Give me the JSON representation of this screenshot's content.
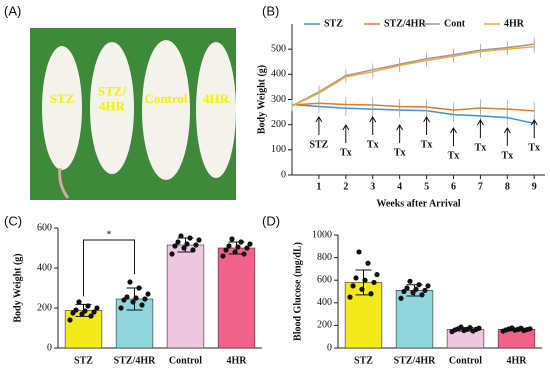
{
  "photo": {
    "panel": "(A)",
    "labels": [
      [
        "STZ"
      ],
      [
        "STZ/",
        "4HR"
      ],
      [
        "Control"
      ],
      [
        "4HR"
      ]
    ]
  },
  "chart_data": [
    {
      "type": "line",
      "panel": "(B)",
      "x_label": "Weeks after Arrival",
      "y_label": "Body Weight (g)",
      "x": [
        0,
        1,
        2,
        3,
        4,
        5,
        6,
        7,
        8,
        9
      ],
      "xlim": [
        0,
        9.4
      ],
      "xticks": [
        1,
        2,
        3,
        4,
        5,
        6,
        7,
        8,
        9
      ],
      "ylim": [
        0,
        600
      ],
      "yticks": [
        0,
        100,
        200,
        300,
        400,
        500
      ],
      "series": [
        {
          "name": "STZ",
          "color": "#3b94d9",
          "values": [
            280,
            272,
            265,
            262,
            258,
            256,
            240,
            235,
            228,
            205
          ],
          "errors": [
            20,
            25,
            30,
            30,
            30,
            30,
            30,
            30,
            30,
            30
          ]
        },
        {
          "name": "STZ/4HR",
          "color": "#e07a2e",
          "values": [
            278,
            285,
            280,
            278,
            272,
            270,
            258,
            266,
            262,
            255
          ],
          "errors": [
            20,
            25,
            30,
            30,
            30,
            30,
            30,
            35,
            35,
            35
          ]
        },
        {
          "name": "Cont",
          "color": "#9a9a9a",
          "values": [
            275,
            330,
            395,
            418,
            440,
            462,
            478,
            496,
            506,
            520
          ],
          "errors": [
            20,
            25,
            25,
            25,
            25,
            25,
            25,
            25,
            25,
            25
          ]
        },
        {
          "name": "4HR",
          "color": "#e8b040",
          "values": [
            274,
            325,
            390,
            410,
            435,
            455,
            472,
            490,
            500,
            510
          ],
          "errors": [
            20,
            25,
            25,
            25,
            25,
            25,
            25,
            25,
            25,
            25
          ]
        }
      ],
      "annotations": [
        {
          "x": 1,
          "label": "STZ"
        },
        {
          "x": 2,
          "label": "Tx"
        },
        {
          "x": 3,
          "label": "Tx"
        },
        {
          "x": 4,
          "label": "Tx"
        },
        {
          "x": 5,
          "label": "Tx"
        },
        {
          "x": 6,
          "label": "Tx"
        },
        {
          "x": 7,
          "label": "Tx"
        },
        {
          "x": 8,
          "label": "Tx"
        },
        {
          "x": 9,
          "label": "Tx"
        }
      ]
    },
    {
      "type": "bar",
      "panel": "(C)",
      "y_label": "Body Weight (g)",
      "significance": "*",
      "categories": [
        "STZ",
        "STZ/4HR",
        "Control",
        "4HR"
      ],
      "colors": [
        "#f2ea1a",
        "#8fd6dc",
        "#edc6df",
        "#f0628c"
      ],
      "values": [
        188,
        245,
        515,
        500
      ],
      "errors": [
        30,
        55,
        35,
        30
      ],
      "points": [
        [
          140,
          160,
          170,
          175,
          180,
          185,
          190,
          200,
          210,
          230
        ],
        [
          200,
          215,
          230,
          240,
          245,
          250,
          255,
          270,
          300,
          330
        ],
        [
          470,
          490,
          500,
          510,
          515,
          520,
          530,
          540,
          550,
          560
        ],
        [
          460,
          470,
          480,
          490,
          500,
          505,
          510,
          520,
          530,
          545
        ]
      ],
      "ylim": [
        0,
        600
      ],
      "yticks": [
        0,
        200,
        400,
        600
      ]
    },
    {
      "type": "bar",
      "panel": "(D)",
      "y_label": "Blood Glucose (mg/dL)",
      "categories": [
        "STZ",
        "STZ/4HR",
        "Control",
        "4HR"
      ],
      "colors": [
        "#f2ea1a",
        "#8fd6dc",
        "#edc6df",
        "#f0628c"
      ],
      "values": [
        580,
        510,
        165,
        165
      ],
      "errors": [
        110,
        50,
        15,
        12
      ],
      "points": [
        [
          450,
          480,
          520,
          550,
          580,
          600,
          620,
          650,
          750,
          850
        ],
        [
          440,
          470,
          490,
          500,
          510,
          520,
          530,
          550,
          560,
          590
        ],
        [
          145,
          150,
          155,
          160,
          165,
          165,
          170,
          175,
          180,
          185
        ],
        [
          150,
          155,
          158,
          160,
          163,
          165,
          168,
          170,
          175,
          178
        ]
      ],
      "ylim": [
        0,
        1000
      ],
      "yticks": [
        0,
        200,
        400,
        600,
        800,
        1000
      ]
    }
  ]
}
